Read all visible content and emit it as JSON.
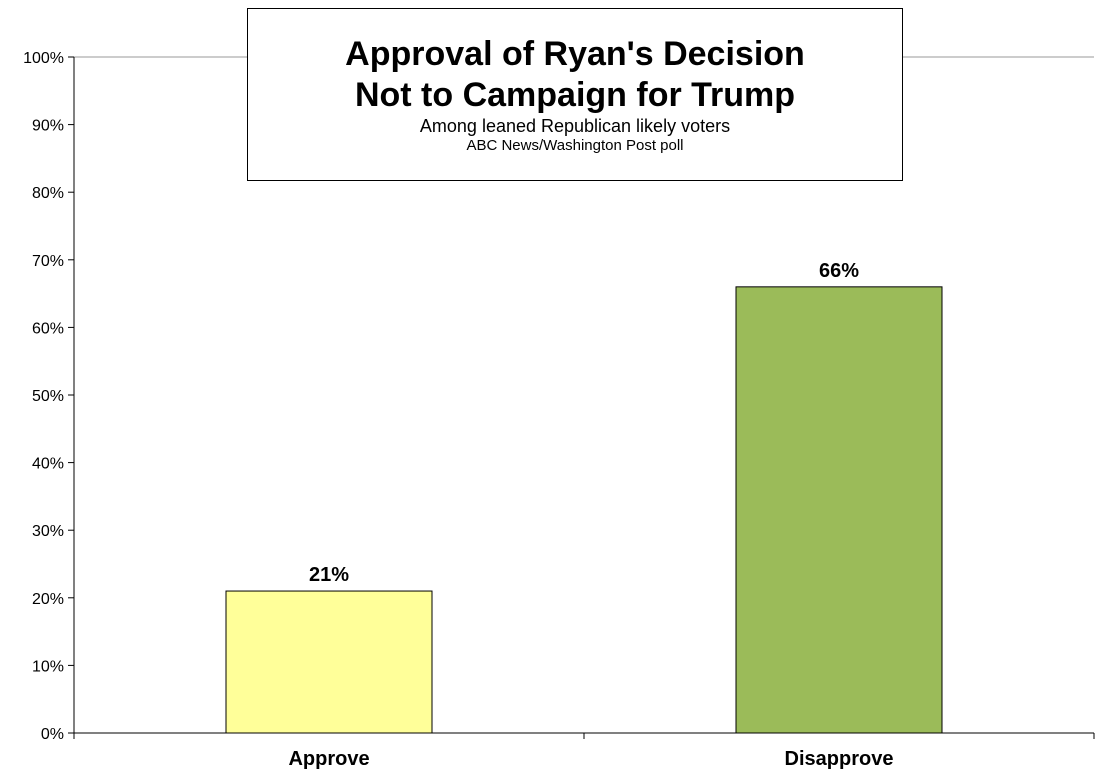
{
  "chart_data": {
    "type": "bar",
    "title": "Approval of Ryan's Decision\nNot to Campaign for Trump",
    "subtitle": "Among leaned Republican likely voters",
    "source": "ABC News/Washington  Post poll",
    "categories": [
      "Approve",
      "Disapprove"
    ],
    "values": [
      21,
      66
    ],
    "data_labels": [
      "21%",
      "66%"
    ],
    "colors": [
      "#ffff99",
      "#9bbb59"
    ],
    "y_ticks": [
      "0%",
      "10%",
      "20%",
      "30%",
      "40%",
      "50%",
      "60%",
      "70%",
      "80%",
      "90%",
      "100%"
    ],
    "ylim": [
      0,
      100
    ],
    "xlabel": "",
    "ylabel": "",
    "grid": false,
    "legend": "none"
  }
}
